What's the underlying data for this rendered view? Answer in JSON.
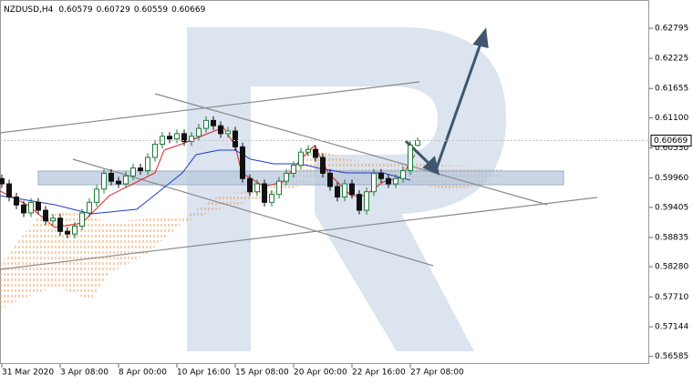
{
  "chart_data": {
    "type": "candlestick",
    "title": "NZDUSD,H4",
    "categories": [
      "31 Mar 2020",
      null,
      null,
      null,
      null,
      null,
      null,
      null,
      "3 Apr 08:00",
      null,
      null,
      null,
      null,
      null,
      null,
      null,
      "8 Apr 00:00",
      null,
      null,
      null,
      null,
      null,
      null,
      null,
      "10 Apr 16:00",
      null,
      null,
      null,
      null,
      null,
      null,
      null,
      "15 Apr 08:00",
      null,
      null,
      null,
      null,
      null,
      null,
      null,
      "20 Apr 00:00",
      null,
      null,
      null,
      null,
      null,
      null,
      null,
      "22 Apr 16:00",
      null,
      null,
      null,
      null,
      null,
      null,
      null,
      "27 Apr 08:00",
      null
    ],
    "open": [
      0.5995,
      0.5985,
      0.596,
      0.5945,
      0.593,
      0.595,
      0.5935,
      0.5915,
      0.592,
      0.5895,
      0.589,
      0.5905,
      0.593,
      0.595,
      0.5975,
      0.6005,
      0.599,
      0.5985,
      0.6,
      0.6015,
      0.601,
      0.6035,
      0.606,
      0.6075,
      0.607,
      0.608,
      0.6065,
      0.6075,
      0.609,
      0.6105,
      0.6095,
      0.608,
      0.6085,
      0.6055,
      0.5995,
      0.597,
      0.5985,
      0.595,
      0.5965,
      0.599,
      0.6005,
      0.602,
      0.6045,
      0.605,
      0.6035,
      0.6005,
      0.598,
      0.596,
      0.5985,
      0.5965,
      0.5935,
      0.597,
      0.6005,
      0.5995,
      0.5985,
      0.5995,
      0.601,
      0.60579
    ],
    "high": [
      0.6003,
      0.5993,
      0.5968,
      0.5953,
      0.5958,
      0.5958,
      0.5943,
      0.5928,
      0.5928,
      0.5903,
      0.5913,
      0.5938,
      0.5958,
      0.5983,
      0.6013,
      0.6013,
      0.5998,
      0.6008,
      0.6023,
      0.6023,
      0.6043,
      0.6068,
      0.6083,
      0.6083,
      0.6088,
      0.6088,
      0.6083,
      0.6098,
      0.6113,
      0.6113,
      0.6103,
      0.6093,
      0.6093,
      0.6063,
      0.6003,
      0.5993,
      0.5993,
      0.5973,
      0.5998,
      0.6013,
      0.6028,
      0.6053,
      0.6058,
      0.6058,
      0.6043,
      0.6013,
      0.5988,
      0.5993,
      0.5993,
      0.5973,
      0.5978,
      0.6013,
      0.6013,
      0.6003,
      0.6003,
      0.6018,
      0.6066,
      0.60729
    ],
    "low": [
      0.5977,
      0.5952,
      0.5937,
      0.5922,
      0.5922,
      0.5927,
      0.5907,
      0.5907,
      0.5887,
      0.5882,
      0.5882,
      0.5897,
      0.5922,
      0.5942,
      0.5967,
      0.5982,
      0.5977,
      0.5977,
      0.5992,
      0.6002,
      0.6002,
      0.6027,
      0.6052,
      0.6062,
      0.6062,
      0.6057,
      0.6057,
      0.6067,
      0.6082,
      0.6087,
      0.6072,
      0.6072,
      0.6047,
      0.5987,
      0.5962,
      0.5962,
      0.5942,
      0.5942,
      0.5957,
      0.5982,
      0.5997,
      0.6012,
      0.6037,
      0.6027,
      0.5997,
      0.5972,
      0.5952,
      0.5952,
      0.5957,
      0.5927,
      0.5927,
      0.5962,
      0.5987,
      0.5977,
      0.5977,
      0.5987,
      0.6002,
      0.60559
    ],
    "close": [
      0.5985,
      0.596,
      0.5945,
      0.593,
      0.595,
      0.5935,
      0.5915,
      0.592,
      0.5895,
      0.589,
      0.5905,
      0.593,
      0.595,
      0.5975,
      0.6005,
      0.599,
      0.5985,
      0.6,
      0.6015,
      0.601,
      0.6035,
      0.606,
      0.6075,
      0.607,
      0.608,
      0.6065,
      0.6075,
      0.609,
      0.6105,
      0.6095,
      0.608,
      0.6085,
      0.6055,
      0.5995,
      0.597,
      0.5985,
      0.595,
      0.5965,
      0.599,
      0.6005,
      0.602,
      0.6045,
      0.605,
      0.6035,
      0.6005,
      0.598,
      0.596,
      0.5985,
      0.5965,
      0.5935,
      0.597,
      0.6005,
      0.5995,
      0.5985,
      0.5995,
      0.601,
      0.6058,
      0.60669
    ],
    "up_color": "#1f7a3a",
    "down_color": "#111111",
    "ylim": [
      0.5644,
      0.6333
    ],
    "yticks": [
      0.62795,
      0.62225,
      0.61655,
      {
        "value": 0.611,
        "label": "0.61100"
      },
      {
        "value": 0.6053,
        "label": "0.60530"
      },
      {
        "value": 0.5996,
        "label": "0.59960"
      },
      0.59405,
      0.58835,
      {
        "value": 0.5828,
        "label": "0.58280"
      },
      {
        "value": 0.5771,
        "label": "0.57710"
      },
      0.57144,
      0.56585
    ]
  }
}
